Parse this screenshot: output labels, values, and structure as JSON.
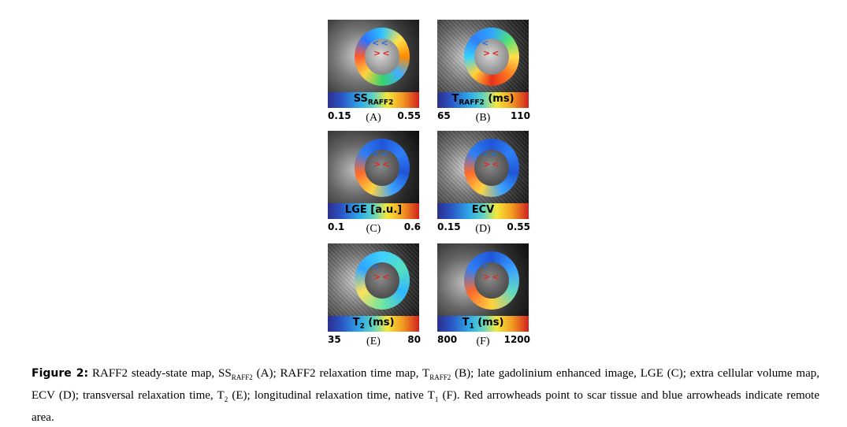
{
  "panels": [
    {
      "id": "A",
      "bar_label": "SS",
      "bar_sub": "RAFF2",
      "bar_suffix": "",
      "min": "0.15",
      "max": "0.55",
      "letter": "(A)"
    },
    {
      "id": "B",
      "bar_label": "T",
      "bar_sub": "RAFF2",
      "bar_suffix": " (ms)",
      "min": "65",
      "max": "110",
      "letter": "(B)"
    },
    {
      "id": "C",
      "bar_label": "LGE [a.u.]",
      "bar_sub": "",
      "bar_suffix": "",
      "min": "0.1",
      "max": "0.6",
      "letter": "(C)"
    },
    {
      "id": "D",
      "bar_label": "ECV",
      "bar_sub": "",
      "bar_suffix": "",
      "min": "0.15",
      "max": "0.55",
      "letter": "(D)"
    },
    {
      "id": "E",
      "bar_label": "T",
      "bar_sub": "2",
      "bar_suffix": " (ms)",
      "min": "35",
      "max": "80",
      "letter": "(E)"
    },
    {
      "id": "F",
      "bar_label": "T",
      "bar_sub": "1",
      "bar_suffix": " (ms)",
      "min": "800",
      "max": "1200",
      "letter": "(F)"
    }
  ],
  "caption": {
    "label": "Figure 2:",
    "t1": " RAFF2 steady-state map, SS",
    "s1": "RAFF2",
    "t2": " (A); RAFF2 relaxation time map, T",
    "s2": "RAFF2",
    "t3": " (B); late gadolinium enhanced image, LGE (C); extra cellular volume map, ECV (D); transversal relaxation time, T",
    "s3": "2",
    "t4": " (E); longitudinal relaxation time, native T",
    "s4": "1",
    "t5": " (F). Red arrowheads point to scar tissue and blue arrowheads indicate remote area."
  }
}
